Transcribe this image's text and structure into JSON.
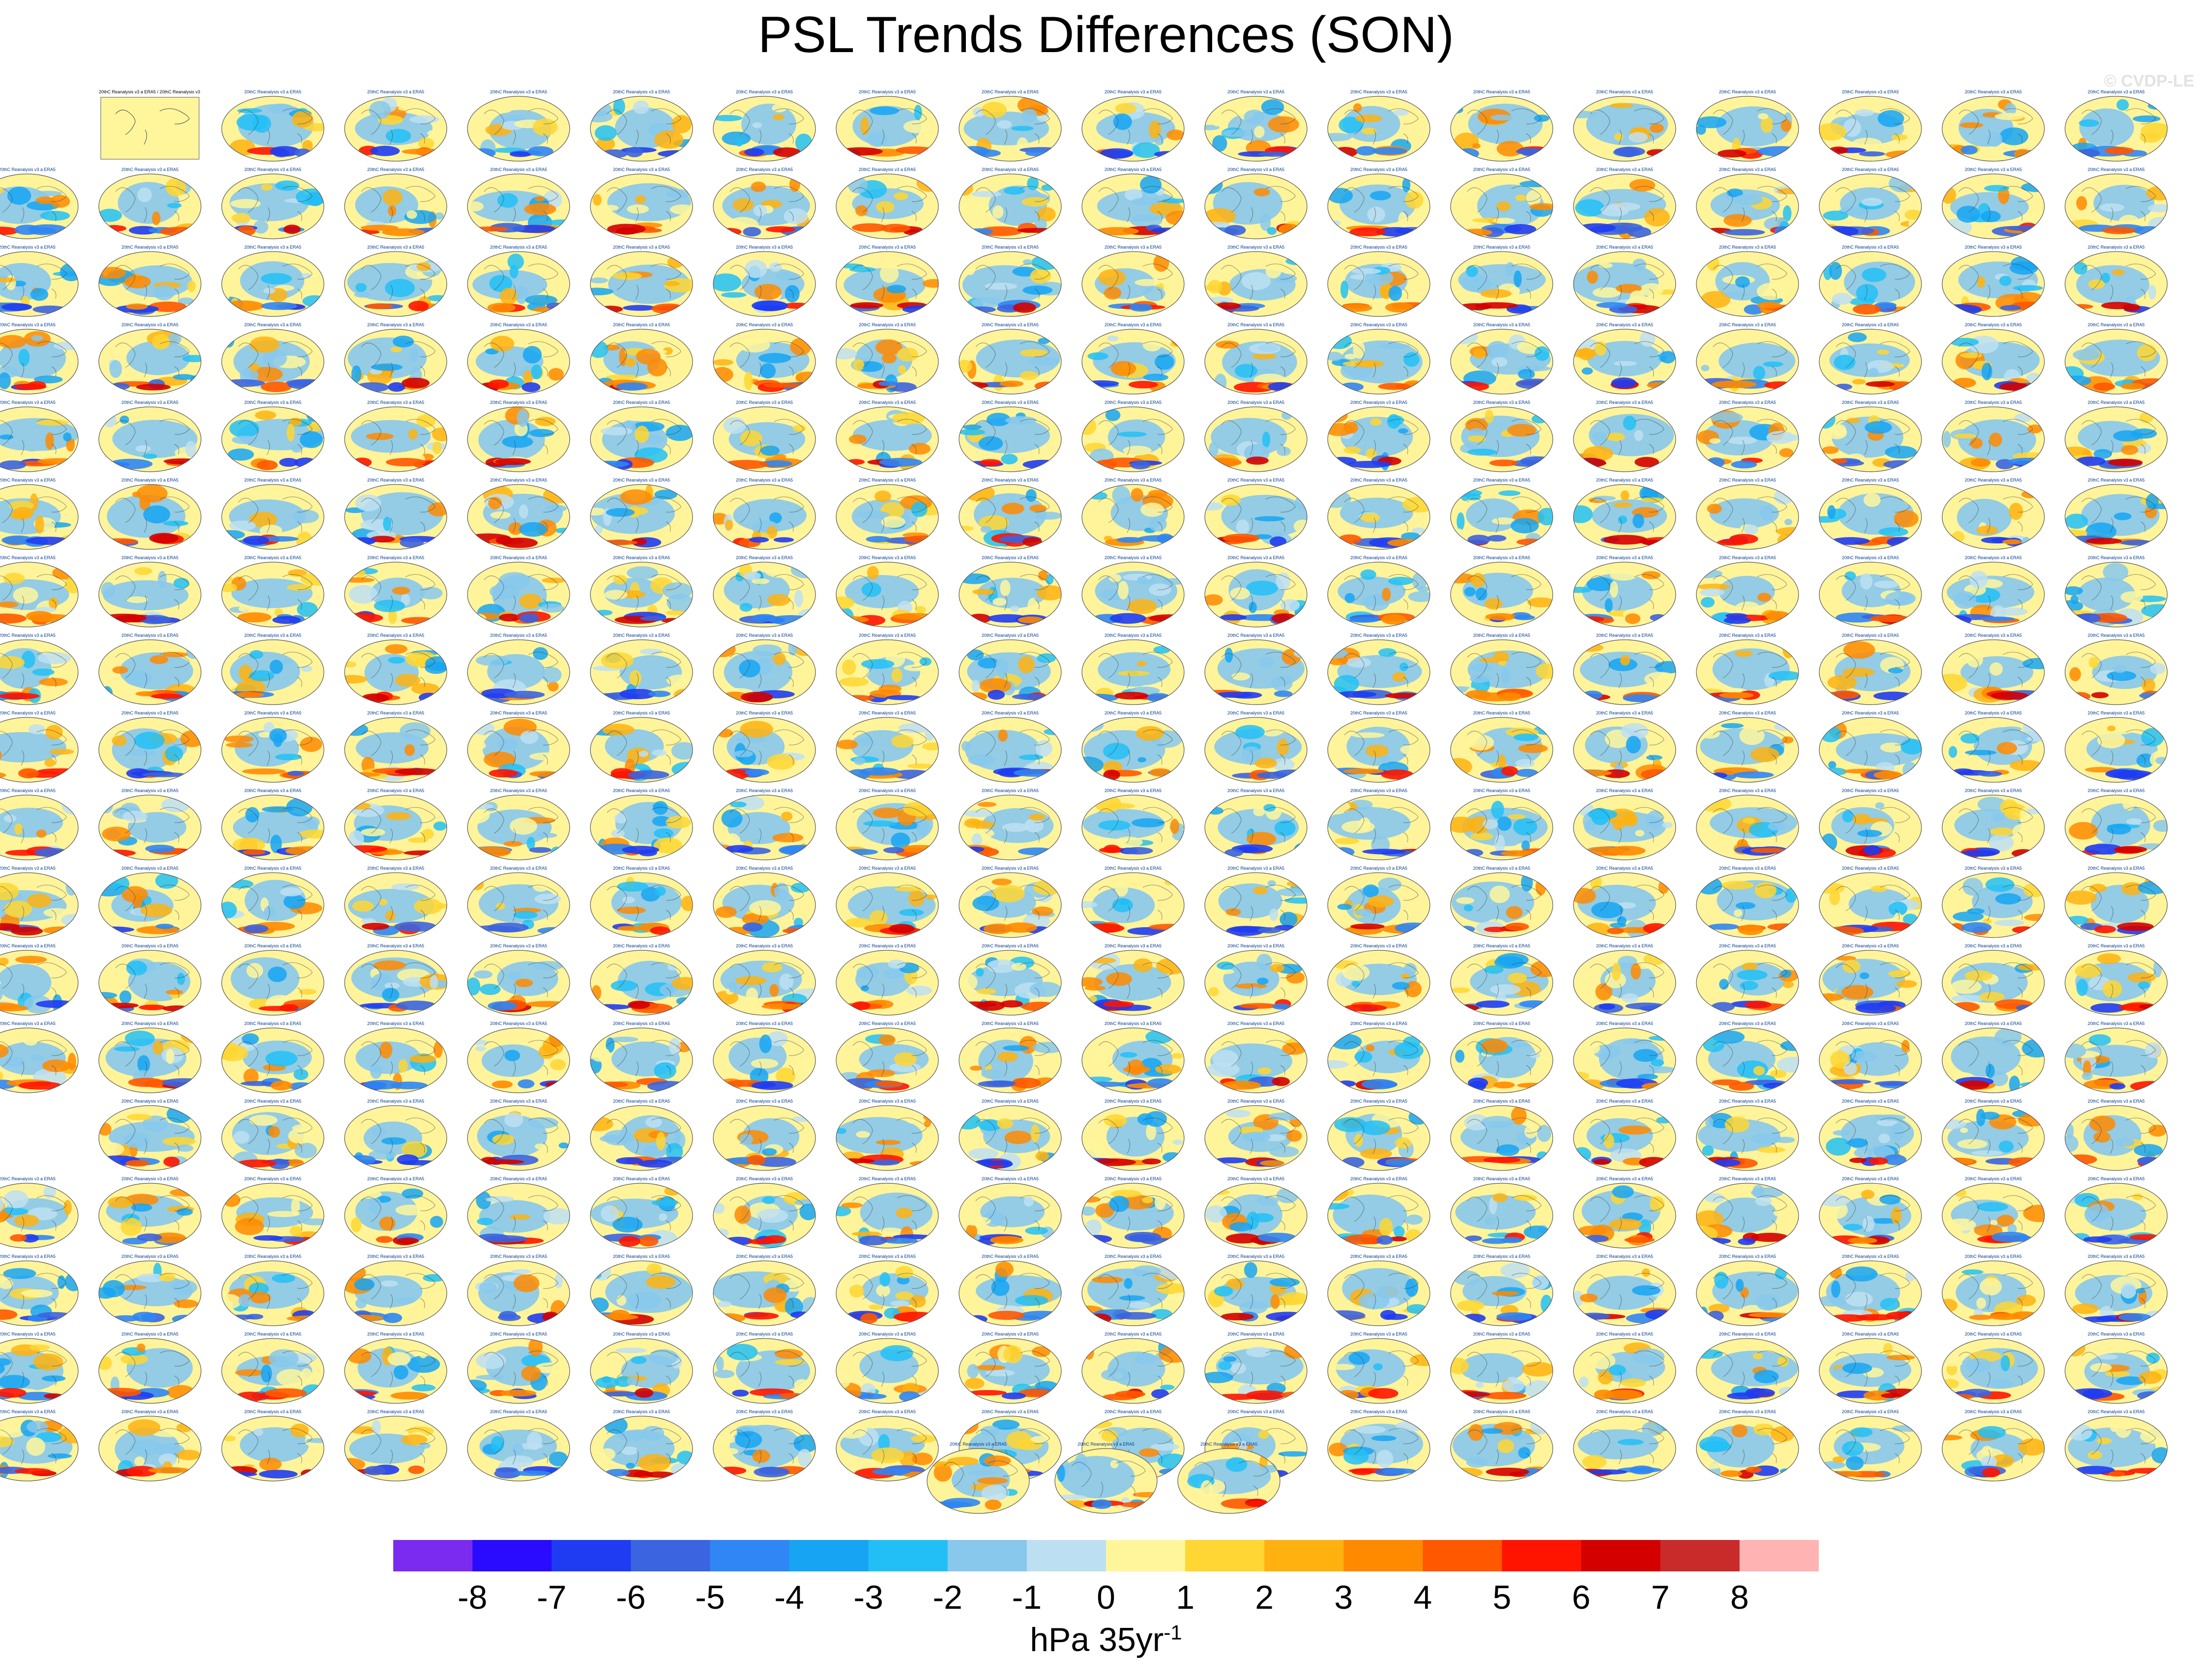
{
  "title": "PSL Trends Differences (SON)",
  "watermark": "© CVDP-LE",
  "panels": {
    "reference_title": "20thC Reanalysis v3 a ERA5 / 20thC Reanalysis v3 a ERA5",
    "title_template": "20thC Reanalysis v3 a ERA5",
    "rows": [
      17,
      18,
      18,
      18,
      18,
      18,
      18,
      18,
      18,
      18,
      18,
      18,
      18,
      17,
      18,
      18,
      18,
      18,
      3
    ],
    "map_type": "global-map-ellipse"
  },
  "chart_data": {
    "type": "heatmap",
    "title": "PSL Trends Differences (SON)",
    "colorbar": {
      "ticks": [
        "-8",
        "-7",
        "-6",
        "-5",
        "-4",
        "-3",
        "-2",
        "-1",
        "0",
        "1",
        "2",
        "3",
        "4",
        "5",
        "6",
        "7",
        "8"
      ],
      "colors": [
        "#7b2bf0",
        "#2a0bff",
        "#1f3cf2",
        "#3b64e0",
        "#2f86f4",
        "#16a4f3",
        "#22bff6",
        "#87c8ec",
        "#bddff2",
        "#fff69c",
        "#ffd633",
        "#ffb10f",
        "#ff8a00",
        "#ff5800",
        "#ff1400",
        "#d40000",
        "#c92b2b",
        "#ffb3b3"
      ],
      "units_main": "hPa 35yr",
      "units_sup": "-1"
    }
  }
}
